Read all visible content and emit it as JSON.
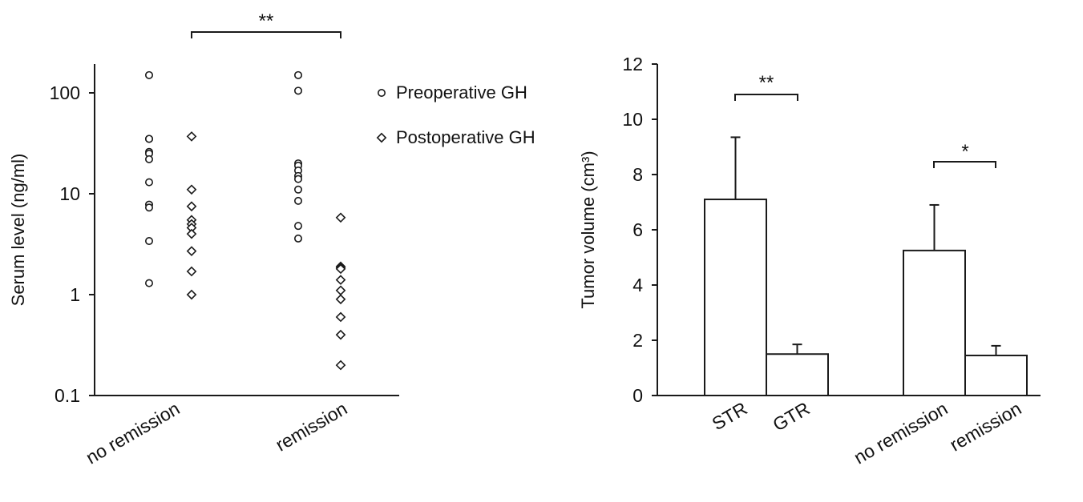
{
  "chart_data": [
    {
      "type": "scatter",
      "ylabel": "Serum level (ng/ml)",
      "yscale": "log",
      "ylim": [
        0.1,
        200
      ],
      "yticks": [
        0.1,
        1,
        10,
        100
      ],
      "ytick_labels": [
        "0.1",
        "1",
        "10",
        "100"
      ],
      "categories": [
        "no remission",
        "remission"
      ],
      "series": [
        {
          "name": "Preoperative GH",
          "marker": "circle",
          "values": {
            "no remission": [
              150,
              35,
              35,
              26,
              25,
              22,
              13,
              7.8,
              7.3,
              3.4,
              1.3
            ],
            "remission": [
              150,
              105,
              20,
              19,
              17,
              15,
              14,
              11,
              8.5,
              4.8,
              3.6
            ]
          }
        },
        {
          "name": "Postoperative GH",
          "marker": "diamond",
          "values": {
            "no remission": [
              37,
              11,
              7.5,
              5.5,
              5.0,
              4.6,
              4.0,
              2.7,
              1.7,
              1.0
            ],
            "remission": [
              5.8,
              1.9,
              1.85,
              1.8,
              1.4,
              1.1,
              0.9,
              0.6,
              0.4,
              0.2
            ]
          }
        }
      ],
      "significance": [
        {
          "from": "no remission",
          "to": "remission",
          "label": "**"
        }
      ],
      "legend": "top-right",
      "grid": false
    },
    {
      "type": "bar",
      "ylabel": "Tumor volume (cm³)",
      "ylim": [
        0,
        12
      ],
      "yticks": [
        0,
        2,
        4,
        6,
        8,
        10,
        12
      ],
      "ytick_labels": [
        "0",
        "2",
        "4",
        "6",
        "8",
        "10",
        "12"
      ],
      "categories": [
        "STR",
        "GTR",
        "no remission",
        "remission"
      ],
      "values": [
        7.1,
        1.5,
        5.25,
        1.45
      ],
      "errors": [
        2.25,
        0.35,
        1.65,
        0.35
      ],
      "significance": [
        {
          "from": "STR",
          "to": "GTR",
          "label": "**"
        },
        {
          "from": "no remission",
          "to": "remission",
          "label": "*"
        }
      ],
      "grid": false
    }
  ]
}
